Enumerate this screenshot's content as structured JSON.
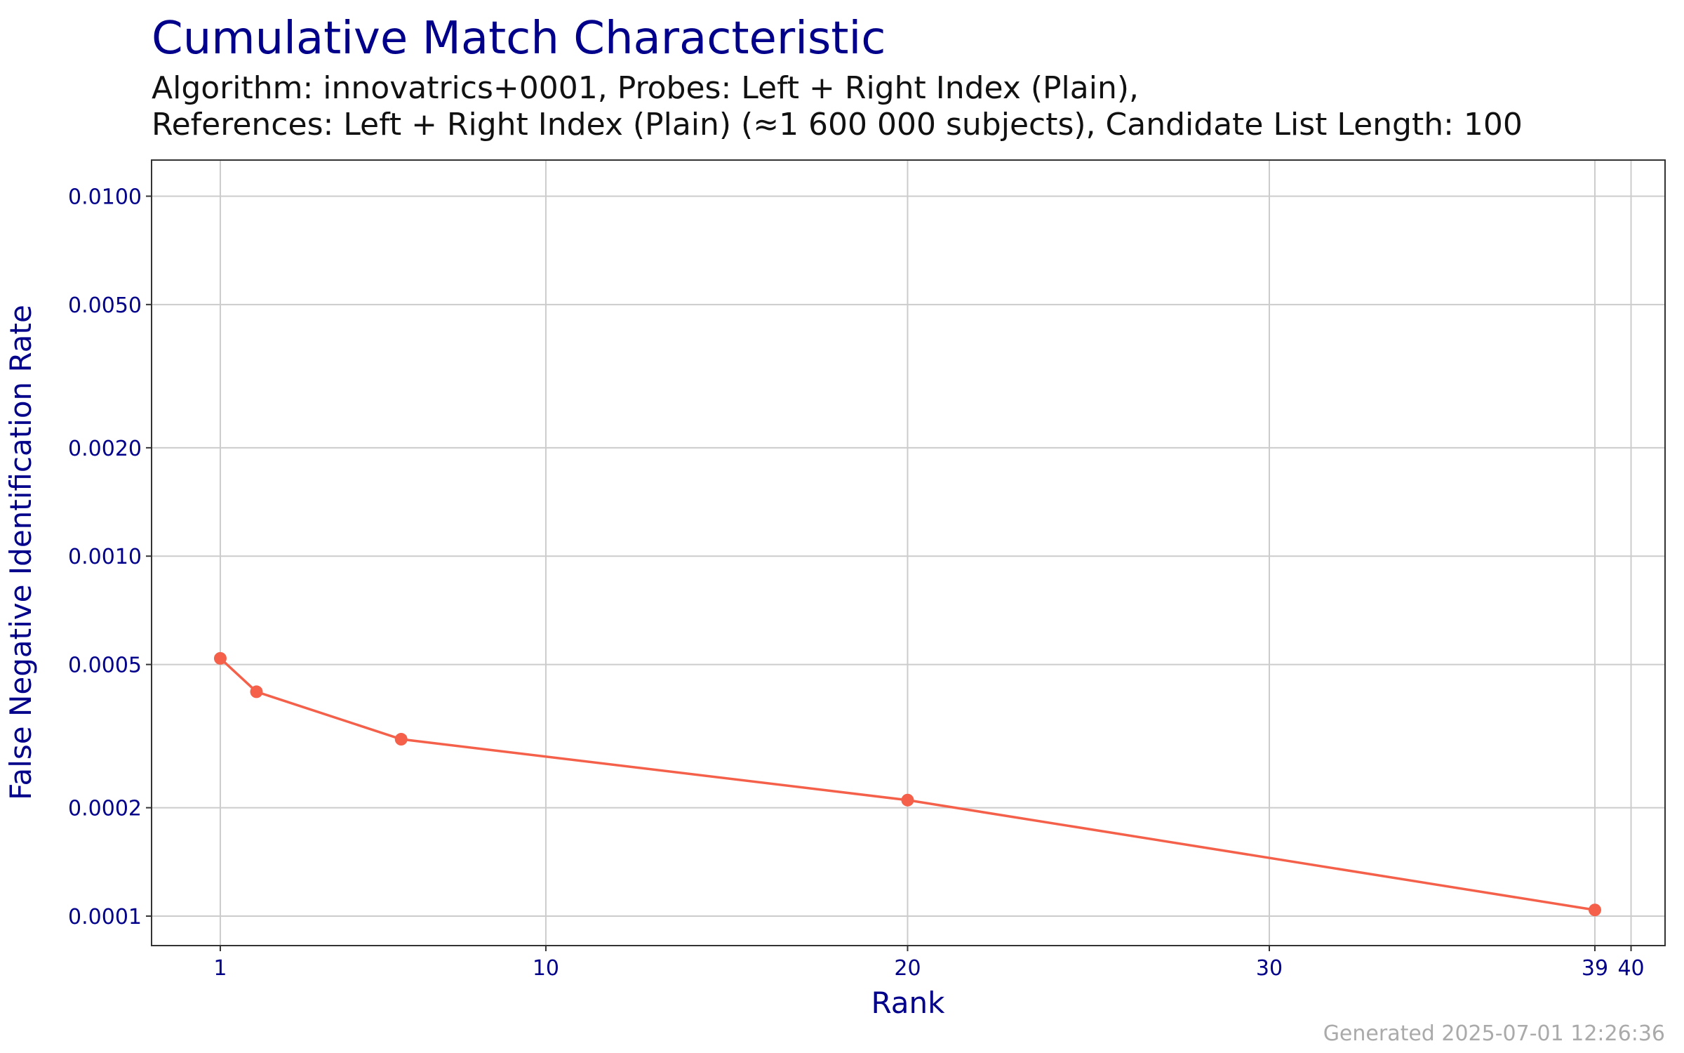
{
  "chart_data": {
    "type": "line",
    "title": "Cumulative Match Characteristic",
    "subtitle": [
      "Algorithm: innovatrics+0001, Probes: Left + Right Index (Plain),",
      "References: Left + Right Index (Plain) (≈1 600 000 subjects), Candidate List Length: 100"
    ],
    "x_label": "Rank",
    "y_label": "False Negative Identification Rate",
    "footer": "Generated 2025-07-01 12:26:36",
    "x": [
      1,
      2,
      6,
      20,
      39
    ],
    "values": [
      0.00052,
      0.00042,
      0.00031,
      0.00021,
      0.000104
    ],
    "color": "#f4604a",
    "xlim": [
      -0.9,
      40.94
    ],
    "xticks": [
      1,
      10,
      20,
      30,
      39,
      40
    ],
    "ylim": [
      8.28e-05,
      0.0126
    ],
    "yticks": [
      {
        "value": 0.0001,
        "label": "0.0001"
      },
      {
        "value": 0.0002,
        "label": "0.0002"
      },
      {
        "value": 0.0005,
        "label": "0.0005"
      },
      {
        "value": 0.001,
        "label": "0.0010"
      },
      {
        "value": 0.002,
        "label": "0.0020"
      },
      {
        "value": 0.005,
        "label": "0.0050"
      },
      {
        "value": 0.01,
        "label": "0.0100"
      }
    ],
    "y_log": true,
    "grid": true
  }
}
